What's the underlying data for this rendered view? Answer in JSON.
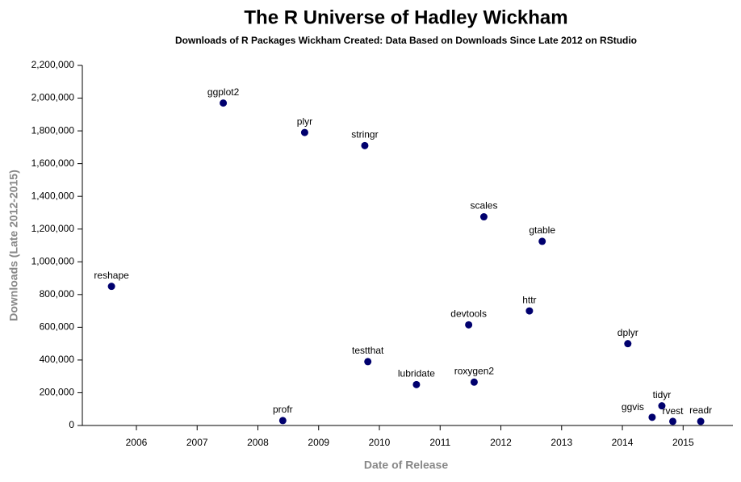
{
  "chart_data": {
    "type": "scatter",
    "title": "The R Universe of Hadley Wickham",
    "subtitle": "Downloads of R Packages Wickham Created: Data Based on Downloads Since Late 2012 on RStudio",
    "x_label": "Date of Release",
    "y_label": "Downloads (Late 2012-2015)",
    "color": "#00006e",
    "series": [
      {
        "name": "packages",
        "labels": [
          "reshape",
          "ggplot2",
          "plyr",
          "stringr",
          "scales",
          "gtable",
          "httr",
          "devtools",
          "dplyr",
          "testthat",
          "lubridate",
          "roxygen2",
          "profr",
          "ggvis",
          "tidyr",
          "rvest",
          "readr"
        ],
        "x": [
          2005.59,
          2007.43,
          2008.77,
          2009.76,
          2011.72,
          2012.68,
          2012.47,
          2011.47,
          2014.09,
          2009.81,
          2010.61,
          2011.56,
          2008.41,
          2014.49,
          2014.65,
          2014.83,
          2015.29
        ],
        "values": [
          850000,
          1970000,
          1790000,
          1710000,
          1275000,
          1125000,
          700000,
          615000,
          500000,
          390000,
          250000,
          265000,
          30000,
          50000,
          120000,
          25000,
          25000
        ]
      }
    ],
    "xlim": [
      2005.11,
      2015.82
    ],
    "xticks": [
      2006,
      2007,
      2008,
      2009,
      2010,
      2011,
      2012,
      2013,
      2014,
      2015
    ],
    "ylim": [
      0,
      2200000
    ],
    "yticks": [
      {
        "value": 0,
        "label": "0"
      },
      {
        "value": 200000,
        "label": "200,000"
      },
      {
        "value": 400000,
        "label": "400,000"
      },
      {
        "value": 600000,
        "label": "600,000"
      },
      {
        "value": 800000,
        "label": "800,000"
      },
      {
        "value": 1000000,
        "label": "1,000,000"
      },
      {
        "value": 1200000,
        "label": "1,200,000"
      },
      {
        "value": 1400000,
        "label": "1,400,000"
      },
      {
        "value": 1600000,
        "label": "1,600,000"
      },
      {
        "value": 1800000,
        "label": "1,800,000"
      },
      {
        "value": 2000000,
        "label": "2,000,000"
      },
      {
        "value": 2200000,
        "label": "2,200,000"
      }
    ]
  }
}
